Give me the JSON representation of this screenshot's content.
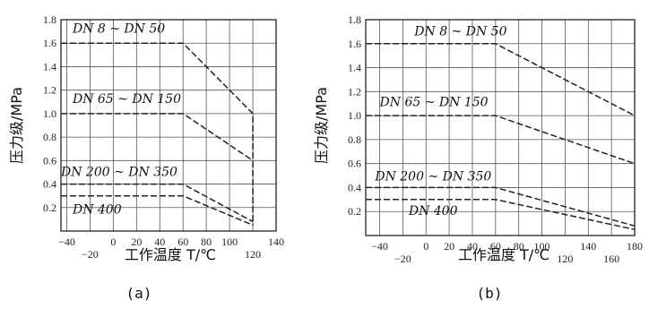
{
  "chart_data": [
    {
      "type": "line",
      "panel_label": "(a)",
      "xlabel": "工作温度 T/℃",
      "ylabel": "压力级/MPa",
      "xlim": [
        -45,
        140
      ],
      "ylim": [
        0,
        1.8
      ],
      "y_ticks": [
        "0.2",
        "0.4",
        "0.6",
        "0.8",
        "1.0",
        "1.2",
        "1.4",
        "1.6",
        "1.8"
      ],
      "x_ticks_upper": [
        "−40",
        "0",
        "20",
        "40",
        "60",
        "80",
        "100",
        "140"
      ],
      "x_ticks_lower": [
        "−20",
        "120"
      ],
      "grid": true,
      "series": [
        {
          "name": "DN 8 ~ DN 50",
          "label_at": [
            -35,
            1.69
          ],
          "points": [
            [
              -45,
              1.6
            ],
            [
              60,
              1.6
            ],
            [
              120,
              1.0
            ],
            [
              120,
              0.05
            ]
          ]
        },
        {
          "name": "DN 65 ~ DN 150",
          "label_at": [
            -35,
            1.09
          ],
          "points": [
            [
              -45,
              1.0
            ],
            [
              60,
              1.0
            ],
            [
              120,
              0.6
            ]
          ]
        },
        {
          "name": "DN 200 ~ DN 350",
          "label_at": [
            -45,
            0.47
          ],
          "points": [
            [
              -45,
              0.4
            ],
            [
              60,
              0.4
            ],
            [
              120,
              0.08
            ]
          ]
        },
        {
          "name": "DN 400",
          "label_at": [
            -35,
            0.15
          ],
          "points": [
            [
              -45,
              0.3
            ],
            [
              60,
              0.3
            ],
            [
              120,
              0.05
            ]
          ]
        }
      ]
    },
    {
      "type": "line",
      "panel_label": "(b)",
      "xlabel": "工作温度 T/℃",
      "ylabel": "压力级/MPa",
      "xlim": [
        -52,
        180
      ],
      "ylim": [
        0,
        1.8
      ],
      "y_ticks": [
        "0.2",
        "0.4",
        "0.6",
        "0.8",
        "1.0",
        "1.2",
        "1.4",
        "1.6",
        "1.8"
      ],
      "x_ticks_upper": [
        "−40",
        "0",
        "20",
        "40",
        "60",
        "80",
        "100",
        "140",
        "180"
      ],
      "x_ticks_lower": [
        "−20",
        "120",
        "160"
      ],
      "grid": true,
      "series": [
        {
          "name": "DN 8 ~ DN 50",
          "label_at": [
            -10,
            1.67
          ],
          "points": [
            [
              -52,
              1.6
            ],
            [
              60,
              1.6
            ],
            [
              180,
              1.0
            ]
          ]
        },
        {
          "name": "DN 65 ~ DN 150",
          "label_at": [
            -40,
            1.08
          ],
          "points": [
            [
              -52,
              1.0
            ],
            [
              60,
              1.0
            ],
            [
              180,
              0.6
            ]
          ]
        },
        {
          "name": "DN 200 ~ DN 350",
          "label_at": [
            -44,
            0.46
          ],
          "points": [
            [
              -52,
              0.4
            ],
            [
              60,
              0.4
            ],
            [
              180,
              0.08
            ]
          ]
        },
        {
          "name": "DN 400",
          "label_at": [
            -15,
            0.17
          ],
          "points": [
            [
              -52,
              0.3
            ],
            [
              60,
              0.3
            ],
            [
              180,
              0.05
            ]
          ]
        }
      ]
    }
  ]
}
